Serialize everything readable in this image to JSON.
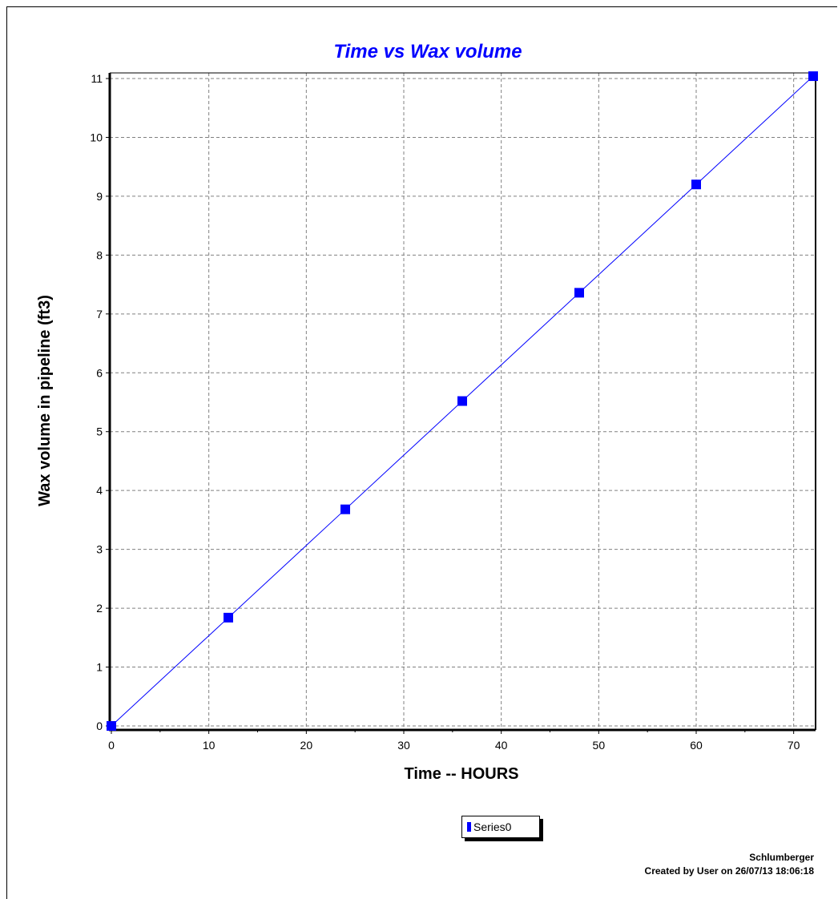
{
  "chart_data": {
    "type": "line",
    "title": "Time vs Wax volume",
    "xlabel": "Time -- HOURS",
    "ylabel": "Wax volume in pipeline (ft3)",
    "xlim": [
      0,
      72
    ],
    "ylim": [
      0,
      11
    ],
    "xticks": [
      0,
      10,
      20,
      30,
      40,
      50,
      60,
      70
    ],
    "yticks": [
      0,
      1,
      2,
      3,
      4,
      5,
      6,
      7,
      8,
      9,
      10,
      11
    ],
    "grid": true,
    "legend_position": "bottom",
    "series": [
      {
        "name": "Series0",
        "color": "#0000ff",
        "marker": "square",
        "x": [
          0,
          12,
          24,
          36,
          48,
          60,
          72
        ],
        "y": [
          0,
          1.84,
          3.68,
          5.52,
          7.36,
          9.2,
          11.04
        ]
      }
    ],
    "title_color": "#0000ff"
  },
  "footer": {
    "company": "Schlumberger",
    "created": "Created by User on 26/07/13 18:06:18"
  }
}
